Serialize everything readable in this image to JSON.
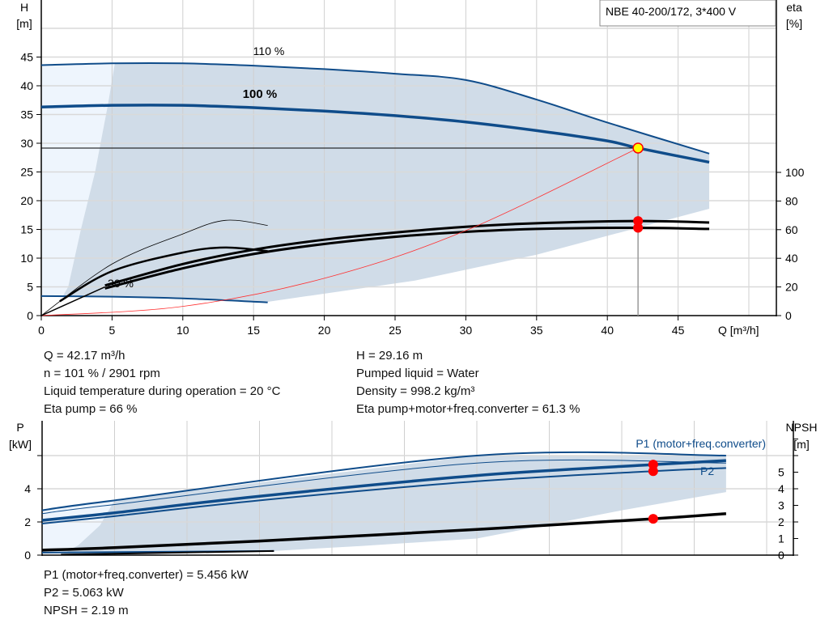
{
  "legend_title": "NBE 40-200/172, 3*400 V",
  "chart_data": [
    {
      "type": "line",
      "title": "",
      "xlabel": "Q [m³/h]",
      "ylabel": "H\n[m]",
      "ylabel_left_lines": [
        "H",
        "[m]"
      ],
      "ylabel_right_lines": [
        "eta",
        "[%]"
      ],
      "xlim": [
        0,
        52
      ],
      "ylim": [
        0,
        55
      ],
      "y2lim": [
        0,
        220
      ],
      "x_ticks": [
        "0",
        "5",
        "10",
        "15",
        "20",
        "25",
        "30",
        "35",
        "40",
        "45"
      ],
      "y_ticks": [
        "0",
        "5",
        "10",
        "15",
        "20",
        "25",
        "30",
        "35",
        "40",
        "45"
      ],
      "y2_ticks": [
        "0",
        "20",
        "40",
        "60",
        "80",
        "100"
      ],
      "grid": true,
      "curve_labels": [
        "110 %",
        "100 %",
        "30 %"
      ],
      "colors": {
        "curve": "#0f4c8a",
        "area": "#d0dce8",
        "area_light": "#eef5fd",
        "eta": "#000000",
        "system": "#ff3030",
        "point": "#ffff00",
        "marker": "#ff0000"
      },
      "series": [
        {
          "name": "110 %",
          "axis": "H",
          "points": [
            [
              0,
              43.6
            ],
            [
              5,
              43.9
            ],
            [
              10,
              43.9
            ],
            [
              15,
              43.5
            ],
            [
              20,
              42.9
            ],
            [
              25,
              42.1
            ],
            [
              30,
              41
            ],
            [
              35,
              37.6
            ],
            [
              40,
              33.6
            ],
            [
              47.2,
              28.2
            ]
          ]
        },
        {
          "name": "100 %",
          "axis": "H",
          "points": [
            [
              0,
              36.3
            ],
            [
              5,
              36.6
            ],
            [
              10,
              36.6
            ],
            [
              15,
              36.2
            ],
            [
              20,
              35.6
            ],
            [
              25,
              34.8
            ],
            [
              30,
              33.7
            ],
            [
              35,
              32.2
            ],
            [
              40,
              30.4
            ],
            [
              42.17,
              29.16
            ],
            [
              47.2,
              26.7
            ]
          ]
        },
        {
          "name": "30 %",
          "axis": "H",
          "points": [
            [
              0,
              3.4
            ],
            [
              5,
              3.3
            ],
            [
              10,
              3.0
            ],
            [
              16,
              2.3
            ]
          ]
        },
        {
          "axis": "eta",
          "points": [
            [
              4.5,
              21
            ],
            [
              10,
              36
            ],
            [
              15,
              46
            ],
            [
              20,
              53
            ],
            [
              25,
              58
            ],
            [
              30,
              62
            ],
            [
              35,
              64.5
            ],
            [
              42.17,
              66
            ],
            [
              47.2,
              65
            ]
          ]
        },
        {
          "axis": "eta",
          "points": [
            [
              4.5,
              19
            ],
            [
              10,
              33
            ],
            [
              15,
              43
            ],
            [
              20,
              50
            ],
            [
              25,
              55
            ],
            [
              30,
              58.5
            ],
            [
              35,
              60.5
            ],
            [
              42.17,
              61.3
            ],
            [
              47.2,
              60.5
            ]
          ]
        },
        {
          "axis": "eta",
          "points": [
            [
              0,
              0
            ],
            [
              5,
              36
            ],
            [
              10,
              57
            ],
            [
              13,
              66.5
            ],
            [
              16,
              63
            ]
          ]
        },
        {
          "axis": "eta",
          "points": [
            [
              1.3,
              10
            ],
            [
              5,
              31
            ],
            [
              10,
              44
            ],
            [
              13,
              47.5
            ],
            [
              16,
              45
            ]
          ]
        },
        {
          "axis": "H",
          "points": [
            [
              0,
              0
            ],
            [
              10,
              1.6
            ],
            [
              20,
              6.5
            ],
            [
              30,
              14.8
            ],
            [
              42.17,
              29.16
            ]
          ]
        }
      ],
      "operating_point": {
        "Q": 42.17,
        "H": 29.16,
        "eta_pump": 66,
        "eta_total": 61.3
      }
    },
    {
      "type": "line",
      "title": "",
      "ylabel_left_lines": [
        "P",
        "[kW]"
      ],
      "ylabel_right_lines": [
        "NPSH",
        "[m]"
      ],
      "xlim": [
        0,
        52
      ],
      "ylim": [
        0,
        8
      ],
      "y2lim": [
        0,
        8
      ],
      "y_ticks": [
        "0",
        "2",
        "4"
      ],
      "y2_ticks": [
        "0",
        "1",
        "2",
        "3",
        "4",
        "5"
      ],
      "grid": true,
      "curve_labels": [
        "P1 (motor+freq.converter)",
        "P2"
      ],
      "series": [
        {
          "axis": "P",
          "points": [
            [
              0,
              2.7
            ],
            [
              5,
              3.3
            ],
            [
              30,
              6.0
            ],
            [
              47.2,
              6.0
            ]
          ]
        },
        {
          "axis": "P",
          "points": [
            [
              0,
              2.5
            ],
            [
              5,
              3.05
            ],
            [
              30,
              5.55
            ],
            [
              47.2,
              5.55
            ]
          ]
        },
        {
          "name": "P1 (motor+freq.converter)",
          "axis": "P",
          "points": [
            [
              0,
              2.1
            ],
            [
              5,
              2.55
            ],
            [
              15,
              3.55
            ],
            [
              30,
              4.8
            ],
            [
              42.17,
              5.456
            ],
            [
              47.2,
              5.7
            ]
          ]
        },
        {
          "name": "P2",
          "axis": "P",
          "points": [
            [
              0,
              1.9
            ],
            [
              5,
              2.35
            ],
            [
              15,
              3.3
            ],
            [
              30,
              4.45
            ],
            [
              42.17,
              5.063
            ],
            [
              47.2,
              5.25
            ]
          ]
        },
        {
          "axis": "NPSH",
          "points": [
            [
              0,
              0.3
            ],
            [
              5,
              0.45
            ],
            [
              15,
              0.85
            ],
            [
              30,
              1.55
            ],
            [
              42.17,
              2.19
            ],
            [
              47.2,
              2.5
            ]
          ]
        },
        {
          "axis": "P",
          "points": [
            [
              0,
              0.15
            ],
            [
              16,
              0.25
            ]
          ]
        },
        {
          "axis": "NPSH",
          "points": [
            [
              1.3,
              0.03
            ],
            [
              16,
              0.25
            ]
          ]
        }
      ],
      "operating_point": {
        "Q": 42.17,
        "P1": 5.456,
        "P2": 5.063,
        "NPSH": 2.19
      }
    }
  ],
  "info_top_left": [
    "Q = 42.17 m³/h",
    "n = 101 % / 2901 rpm",
    "Liquid temperature during operation = 20 °C",
    "Eta pump = 66 %"
  ],
  "info_top_right": [
    "H = 29.16 m",
    "Pumped liquid = Water",
    "Density = 998.2 kg/m³",
    "Eta pump+motor+freq.converter = 61.3 %"
  ],
  "info_bottom": [
    "P1 (motor+freq.converter) = 5.456 kW",
    "P2 = 5.063 kW",
    "NPSH = 2.19 m"
  ]
}
